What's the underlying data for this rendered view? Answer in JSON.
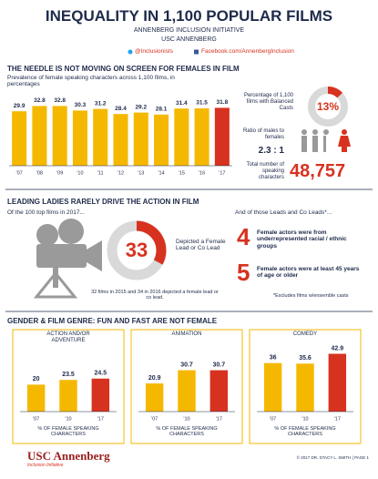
{
  "header": {
    "title": "INEQUALITY IN 1,100 POPULAR FILMS",
    "org": "ANNENBERG INCLUSION INITIATIVE",
    "school": "USC ANNENBERG",
    "twitter": "@Inclusionists",
    "facebook": "Facebook.com/AnnenbergInclusion"
  },
  "sections": [
    {
      "heading": "THE NEEDLE IS NOT MOVING ON SCREEN FOR FEMALES IN FILM"
    },
    {
      "heading": "LEADING LADIES RARELY DRIVE THE ACTION IN FILM",
      "intro": "Of the 100 top films in 2017..."
    },
    {
      "heading": "GENDER & FILM GENRE: FUN AND FAST ARE NOT FEMALE"
    }
  ],
  "stats": {
    "ratio_label": "Ratio of males to females",
    "ratio": "2.3 : 1",
    "total_label": "Total number of speaking characters",
    "total": "48,757"
  },
  "leads": {
    "intro": "And of those Leads and Co Leads*...",
    "items": [
      {
        "number": "4",
        "text": "Female actors were from underrepresented racial / ethnic groups"
      },
      {
        "number": "5",
        "text": "Female actors were at least 45 years of age or older"
      }
    ],
    "footnote": "*Excludes films w/ensemble casts"
  },
  "footer": {
    "logo": "USC Annenberg",
    "sub": "Inclusion Initiative",
    "copyright": "© 2017 DR. STACY L. SMITH | PAGE 1"
  },
  "chart_data": [
    {
      "type": "bar",
      "title": "Prevalence of female speaking characters across 1,100 films, in percentages",
      "categories": [
        "'07",
        "'08",
        "'09",
        "'10",
        "'11",
        "'12",
        "'13",
        "'14",
        "'15",
        "'16",
        "'17"
      ],
      "values": [
        29.9,
        32.8,
        32.8,
        30.3,
        31.2,
        28.4,
        29.2,
        28.1,
        31.4,
        31.5,
        31.8
      ],
      "colors": [
        "#f5b800",
        "#f5b800",
        "#f5b800",
        "#f5b800",
        "#f5b800",
        "#f5b800",
        "#f5b800",
        "#f5b800",
        "#f5b800",
        "#f5b800",
        "#d7321f"
      ],
      "ylim": [
        0,
        40
      ]
    },
    {
      "type": "donut",
      "title": "Percentage of 1,100 films with Balanced Casts",
      "values": [
        13
      ],
      "value_labels": [
        "13%"
      ],
      "colors": [
        "#d7321f",
        "#d9d9d9"
      ]
    },
    {
      "type": "donut",
      "title": "Depicted a Female Lead or Co Lead",
      "values": [
        33
      ],
      "colors": [
        "#d7321f",
        "#d9d9d9"
      ],
      "note": "32 films in 2015 and 34 in 2016 depicted a female lead or co lead."
    },
    {
      "type": "bar",
      "title": "ACTION AND/OR ADVENTURE",
      "categories": [
        "'07",
        "'10",
        "'17"
      ],
      "values": [
        20,
        23.5,
        24.5
      ],
      "colors": [
        "#f5b800",
        "#f5b800",
        "#d7321f"
      ],
      "ylim": [
        0,
        50
      ],
      "ylabel": "% OF FEMALE SPEAKING CHARACTERS"
    },
    {
      "type": "bar",
      "title": "ANIMATION",
      "categories": [
        "'07",
        "'10",
        "'17"
      ],
      "values": [
        20.9,
        30.7,
        30.7
      ],
      "colors": [
        "#f5b800",
        "#f5b800",
        "#d7321f"
      ],
      "ylim": [
        0,
        50
      ],
      "ylabel": "% OF FEMALE SPEAKING CHARACTERS"
    },
    {
      "type": "bar",
      "title": "COMEDY",
      "categories": [
        "'07",
        "'10",
        "'17"
      ],
      "values": [
        36,
        35.6,
        42.9
      ],
      "colors": [
        "#f5b800",
        "#f5b800",
        "#d7321f"
      ],
      "ylim": [
        0,
        50
      ],
      "ylabel": "% OF FEMALE SPEAKING CHARACTERS"
    }
  ]
}
